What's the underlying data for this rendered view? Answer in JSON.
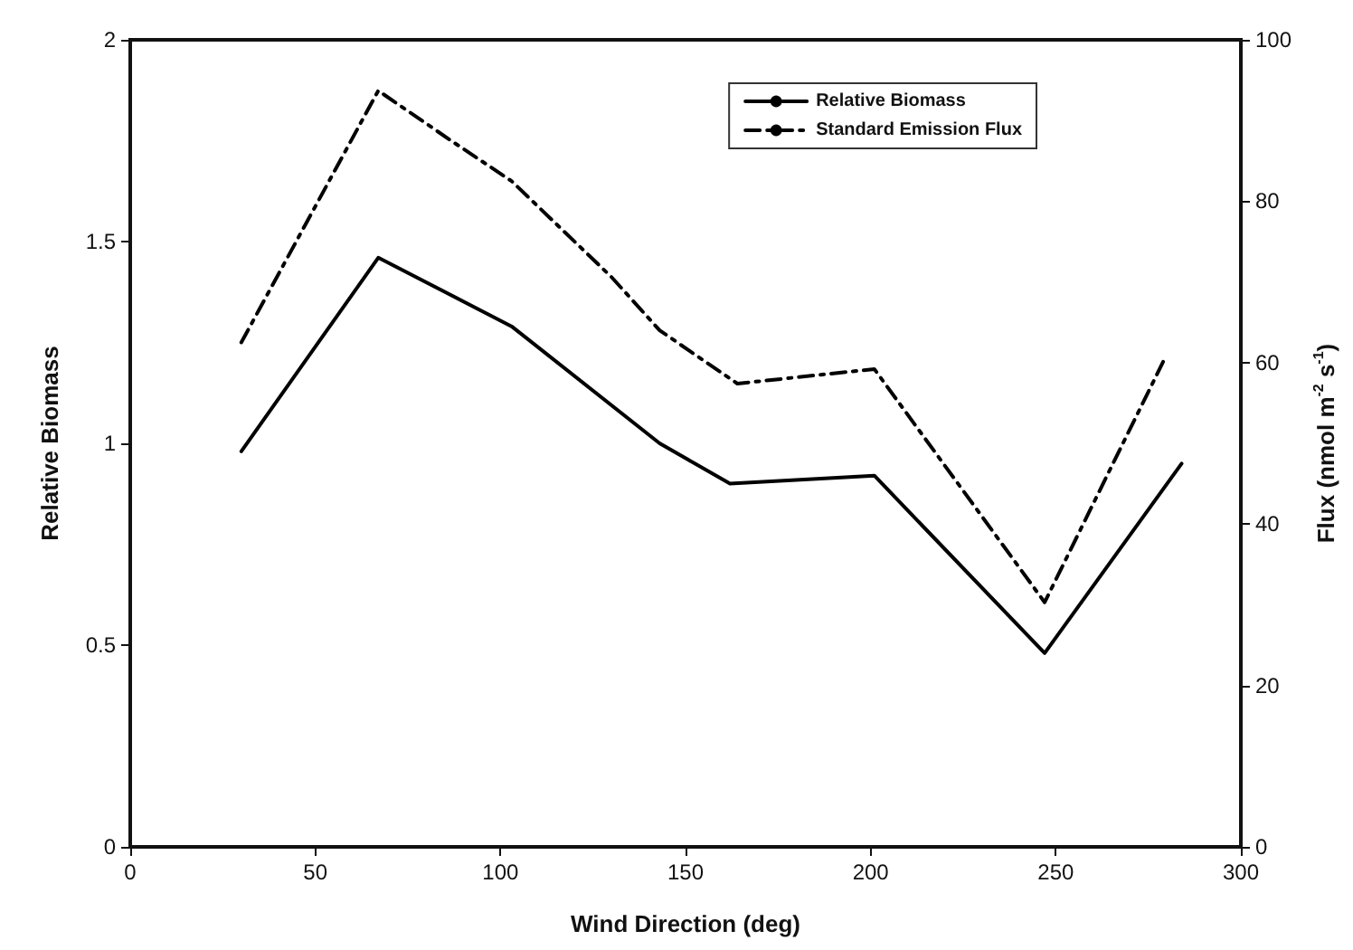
{
  "chart_data": {
    "type": "line",
    "xlabel": "Wind Direction (deg)",
    "ylabel": "Relative Biomass",
    "y2label": "Flux (nmol m$^{-2}$ s$^{-1}$)",
    "xlim": [
      0,
      300
    ],
    "xticks": [
      0,
      50,
      100,
      150,
      200,
      250,
      300
    ],
    "ylim": [
      0,
      2
    ],
    "yticks": [
      0,
      0.5,
      1,
      1.5,
      2
    ],
    "y2lim": [
      0,
      100
    ],
    "y2ticks": [
      0,
      20,
      40,
      60,
      80,
      100
    ],
    "grid": false,
    "legend": "top right",
    "marker": "none",
    "series": [
      {
        "name": "Relative Biomass",
        "color": "#000000",
        "line_style": "solid",
        "x": [
          30,
          67,
          103,
          143,
          162,
          201,
          247,
          284
        ],
        "values": [
          0.98,
          1.46,
          1.29,
          1.0,
          0.9,
          0.92,
          0.48,
          0.95
        ]
      },
      {
        "name": "Standard Emission Flux",
        "color": "#000000",
        "line_style": "dashed",
        "axis": "y2",
        "x": [
          30,
          67,
          87,
          103,
          130,
          143,
          164,
          201,
          247,
          279
        ],
        "values": [
          62.5,
          93.7,
          87.4,
          82.5,
          70.6,
          64,
          57.4,
          59.2,
          30.3,
          60.1
        ]
      }
    ]
  }
}
